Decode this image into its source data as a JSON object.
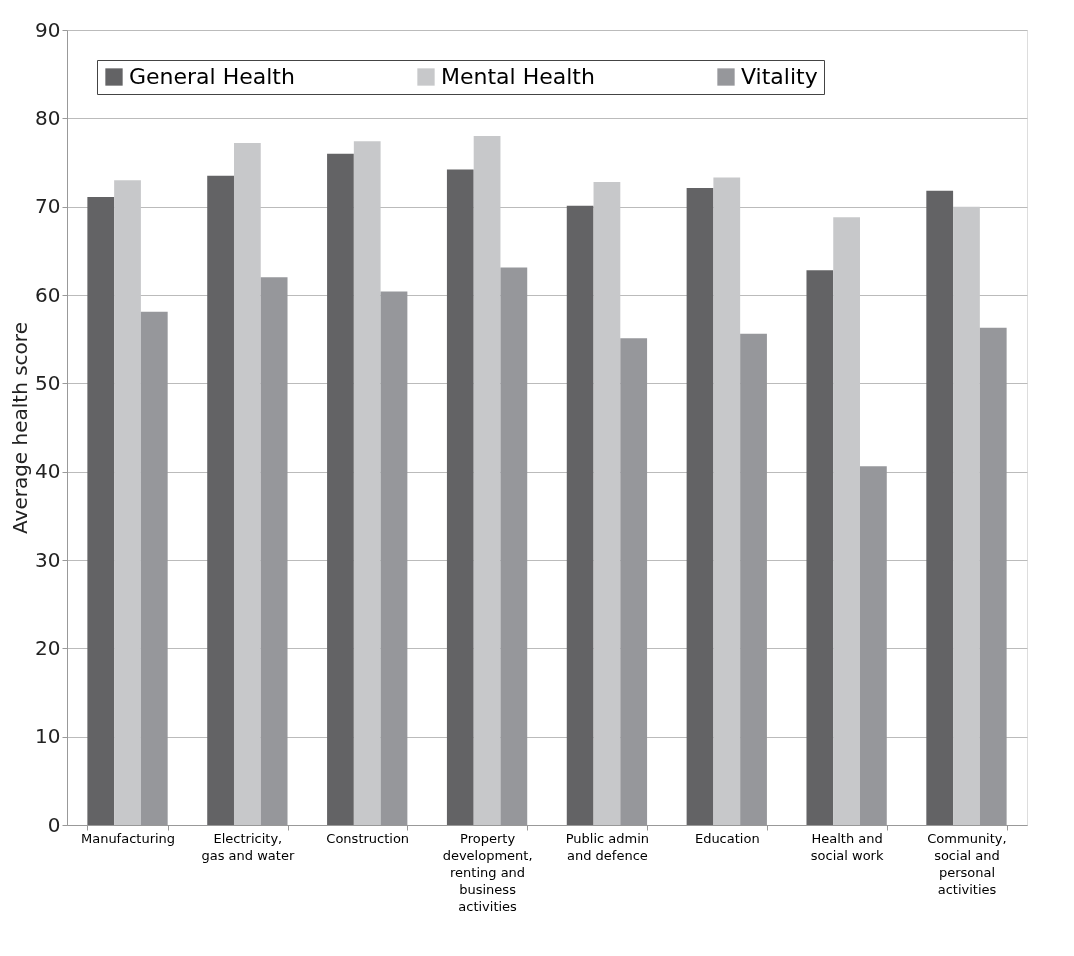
{
  "chart_data": {
    "type": "bar",
    "ylabel": "Average health score",
    "categories": [
      "Manufacturing",
      "Electricity, gas and water",
      "Construction",
      "Property development, renting and business activities",
      "Public admin and defence",
      "Education",
      "Health and social work",
      "Community, social and personal activities"
    ],
    "series": [
      {
        "name": "General Health",
        "color": "#636365",
        "values": [
          71.1,
          73.5,
          76.0,
          74.2,
          70.1,
          72.1,
          62.8,
          71.8
        ]
      },
      {
        "name": "Mental Health",
        "color": "#c7c8ca",
        "values": [
          73.0,
          77.2,
          77.4,
          78.0,
          72.8,
          73.3,
          68.8,
          70.0
        ]
      },
      {
        "name": "Vitality",
        "color": "#96979b",
        "values": [
          58.1,
          62.0,
          60.4,
          63.1,
          55.1,
          55.6,
          40.6,
          56.3
        ]
      }
    ],
    "ylim": [
      0,
      90
    ],
    "yticks": [
      0,
      10,
      20,
      30,
      40,
      50,
      60,
      70,
      80,
      90
    ],
    "grid": "y",
    "legend": "top left"
  }
}
